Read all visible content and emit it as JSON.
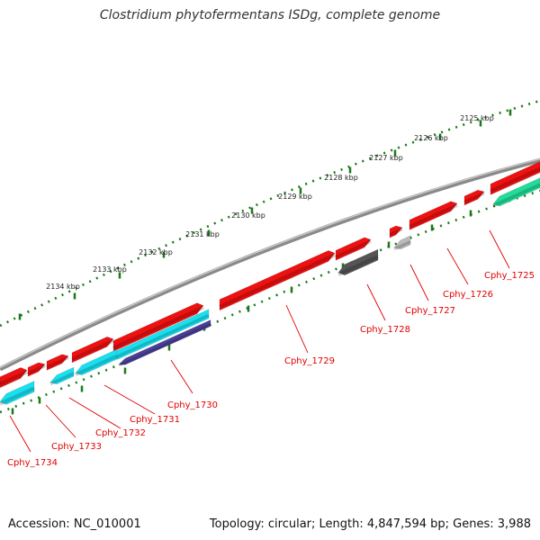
{
  "title": "Clostridium phytofermentans ISDg, complete genome",
  "footer": {
    "accession": "Accession: NC_010001",
    "summary": "Topology: circular; Length: 4,847,594 bp; Genes: 3,988"
  },
  "colors": {
    "forward": "#ee1111",
    "reverse_cyan": "#19e0f0",
    "reverse_green": "#22dd99",
    "dark_gray": "#555555",
    "light_gray": "#bbbbbb",
    "purple": "#4a3f99",
    "backbone": "#808080",
    "tick": "#1a7a1a",
    "label": "#e10000"
  },
  "scale": {
    "unit": "kbp",
    "labels": [
      "2125 kbp",
      "2126 kbp",
      "2127 kbp",
      "2128 kbp",
      "2129 kbp",
      "2130 kbp",
      "2131 kbp",
      "2132 kbp",
      "2133 kbp",
      "2134 kbp"
    ]
  },
  "genes": [
    {
      "label": "Cphy_1725",
      "strand": "reverse",
      "color": "reverse_green"
    },
    {
      "label": "Cphy_1726",
      "strand": "forward",
      "color": "forward"
    },
    {
      "label": "Cphy_1727",
      "strand": "forward",
      "color": "forward"
    },
    {
      "label": "Cphy_1728",
      "strand": "reverse",
      "color": "dark_gray"
    },
    {
      "label": "Cphy_1729",
      "strand": "forward",
      "color": "forward"
    },
    {
      "label": "Cphy_1730",
      "strand": "reverse",
      "color": "purple"
    },
    {
      "label": "Cphy_1731",
      "strand": "reverse",
      "color": "reverse_cyan"
    },
    {
      "label": "Cphy_1732",
      "strand": "reverse",
      "color": "reverse_cyan"
    },
    {
      "label": "Cphy_1733",
      "strand": "forward",
      "color": "forward"
    },
    {
      "label": "Cphy_1734",
      "strand": "reverse",
      "color": "reverse_cyan"
    }
  ]
}
